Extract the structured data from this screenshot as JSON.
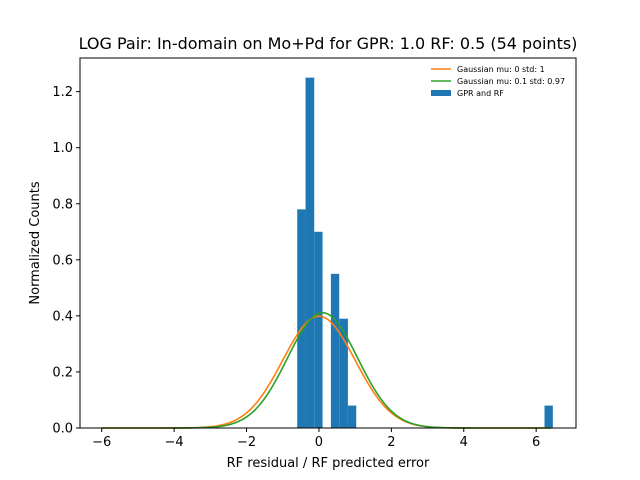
{
  "chart_data": {
    "type": "bar",
    "title": "LOG Pair: In-domain on Mo+Pd for GPR: 1.0 RF: 0.5 (54 points)",
    "xlabel": "RF residual / RF predicted error",
    "ylabel": "Normalized Counts",
    "xlim": [
      -6.6,
      7.1
    ],
    "ylim": [
      0,
      1.32
    ],
    "xticks": [
      -6,
      -4,
      -2,
      0,
      2,
      4,
      6
    ],
    "xtick_labels": [
      "−6",
      "−4",
      "−2",
      "0",
      "2",
      "4",
      "6"
    ],
    "yticks": [
      0.0,
      0.2,
      0.4,
      0.6,
      0.8,
      1.0,
      1.2
    ],
    "ytick_labels": [
      "0.0",
      "0.2",
      "0.4",
      "0.6",
      "0.8",
      "1.0",
      "1.2"
    ],
    "grid": false,
    "legend_position": "top-right",
    "histogram": {
      "name": "GPR and RF",
      "color": "#1f77b4",
      "bins": [
        {
          "x0": -0.6,
          "x1": -0.37,
          "value": 0.78
        },
        {
          "x0": -0.37,
          "x1": -0.13,
          "value": 1.25
        },
        {
          "x0": -0.13,
          "x1": 0.1,
          "value": 0.7
        },
        {
          "x0": 0.33,
          "x1": 0.56,
          "value": 0.55
        },
        {
          "x0": 0.56,
          "x1": 0.8,
          "value": 0.39
        },
        {
          "x0": 0.8,
          "x1": 1.03,
          "value": 0.08
        },
        {
          "x0": 6.23,
          "x1": 6.46,
          "value": 0.08
        }
      ]
    },
    "curves": [
      {
        "name": "Gaussian mu: 0 std: 1",
        "color": "#ff7f0e",
        "mu": 0,
        "std": 1,
        "x_range": [
          -6,
          6.4
        ]
      },
      {
        "name": "Gaussian mu: 0.1 std: 0.97",
        "color": "#2ca02c",
        "mu": 0.1,
        "std": 0.97,
        "x_range": [
          -6,
          6.4
        ]
      }
    ]
  }
}
